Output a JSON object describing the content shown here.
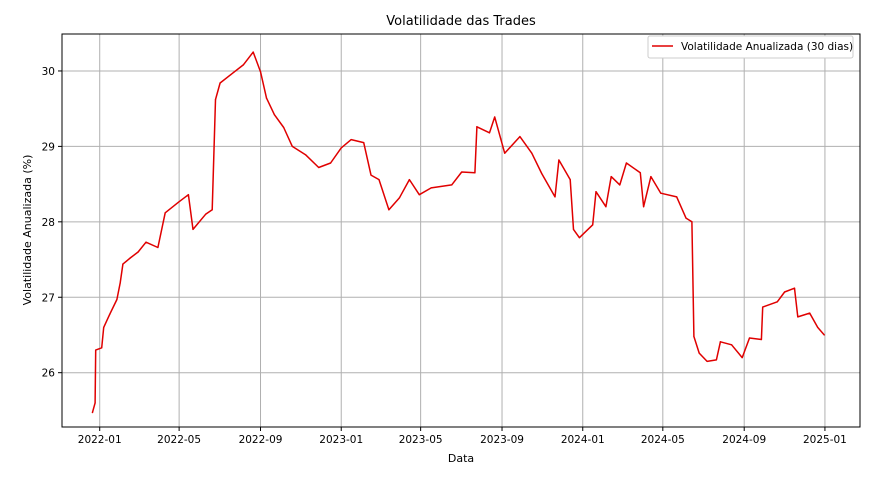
{
  "chart_data": {
    "type": "line",
    "title": "Volatilidade das Trades",
    "xlabel": "Data",
    "ylabel": "Volatilidade Anualizada (%)",
    "xlim": [
      "2021-11-05",
      "2025-02-23"
    ],
    "ylim": [
      25.28,
      30.49
    ],
    "grid": true,
    "legend_position": "top-right",
    "x_ticks": [
      "2022-01",
      "2022-05",
      "2022-09",
      "2023-01",
      "2023-05",
      "2023-09",
      "2024-01",
      "2024-05",
      "2024-09",
      "2025-01"
    ],
    "y_ticks": [
      26,
      27,
      28,
      29,
      30
    ],
    "series": [
      {
        "name": "Volatilidade Anualizada (30 dias)",
        "color": "#e00000",
        "x": [
          "2021-12-21",
          "2021-12-25",
          "2021-12-26",
          "2022-01-04",
          "2022-01-07",
          "2022-01-16",
          "2022-01-27",
          "2022-02-01",
          "2022-02-05",
          "2022-02-16",
          "2022-02-28",
          "2022-03-12",
          "2022-03-30",
          "2022-04-10",
          "2022-04-30",
          "2022-05-15",
          "2022-05-22",
          "2022-06-10",
          "2022-06-20",
          "2022-06-25",
          "2022-07-02",
          "2022-07-18",
          "2022-08-06",
          "2022-08-21",
          "2022-09-01",
          "2022-09-10",
          "2022-09-22",
          "2022-10-06",
          "2022-10-19",
          "2022-11-08",
          "2022-11-28",
          "2022-12-16",
          "2023-01-01",
          "2023-01-16",
          "2023-02-04",
          "2023-02-15",
          "2023-02-27",
          "2023-03-14",
          "2023-03-30",
          "2023-04-14",
          "2023-04-29",
          "2023-05-17",
          "2023-06-17",
          "2023-07-02",
          "2023-07-22",
          "2023-07-25",
          "2023-08-13",
          "2023-08-21",
          "2023-09-05",
          "2023-09-28",
          "2023-10-16",
          "2023-10-31",
          "2023-11-20",
          "2023-11-26",
          "2023-12-13",
          "2023-12-18",
          "2023-12-27",
          "2024-01-16",
          "2024-01-21",
          "2024-02-05",
          "2024-02-13",
          "2024-02-26",
          "2024-03-07",
          "2024-03-28",
          "2024-04-02",
          "2024-04-13",
          "2024-04-28",
          "2024-05-22",
          "2024-06-05",
          "2024-06-14",
          "2024-06-17",
          "2024-06-25",
          "2024-07-07",
          "2024-07-21",
          "2024-07-27",
          "2024-08-13",
          "2024-08-29",
          "2024-09-09",
          "2024-09-27",
          "2024-09-29",
          "2024-10-21",
          "2024-11-01",
          "2024-11-16",
          "2024-11-21",
          "2024-12-09",
          "2024-12-21",
          "2024-12-31"
        ],
        "y": [
          25.47,
          25.6,
          26.3,
          26.33,
          26.6,
          26.77,
          26.97,
          27.19,
          27.44,
          27.52,
          27.6,
          27.73,
          27.66,
          28.12,
          28.26,
          28.36,
          27.9,
          28.1,
          28.16,
          29.62,
          29.84,
          29.95,
          30.08,
          30.25,
          29.99,
          29.64,
          29.42,
          29.25,
          29.0,
          28.89,
          28.72,
          28.78,
          28.98,
          29.09,
          29.05,
          28.62,
          28.56,
          28.16,
          28.32,
          28.56,
          28.36,
          28.45,
          28.49,
          28.66,
          28.65,
          29.26,
          29.18,
          29.39,
          28.91,
          29.13,
          28.91,
          28.64,
          28.33,
          28.82,
          28.56,
          27.9,
          27.79,
          27.96,
          28.4,
          28.2,
          28.6,
          28.49,
          28.78,
          28.65,
          28.2,
          28.6,
          28.38,
          28.33,
          28.05,
          28.0,
          26.48,
          26.26,
          26.15,
          26.17,
          26.41,
          26.37,
          26.2,
          26.46,
          26.44,
          26.87,
          26.94,
          27.07,
          27.12,
          26.74,
          26.79,
          26.6,
          26.5
        ]
      }
    ]
  }
}
